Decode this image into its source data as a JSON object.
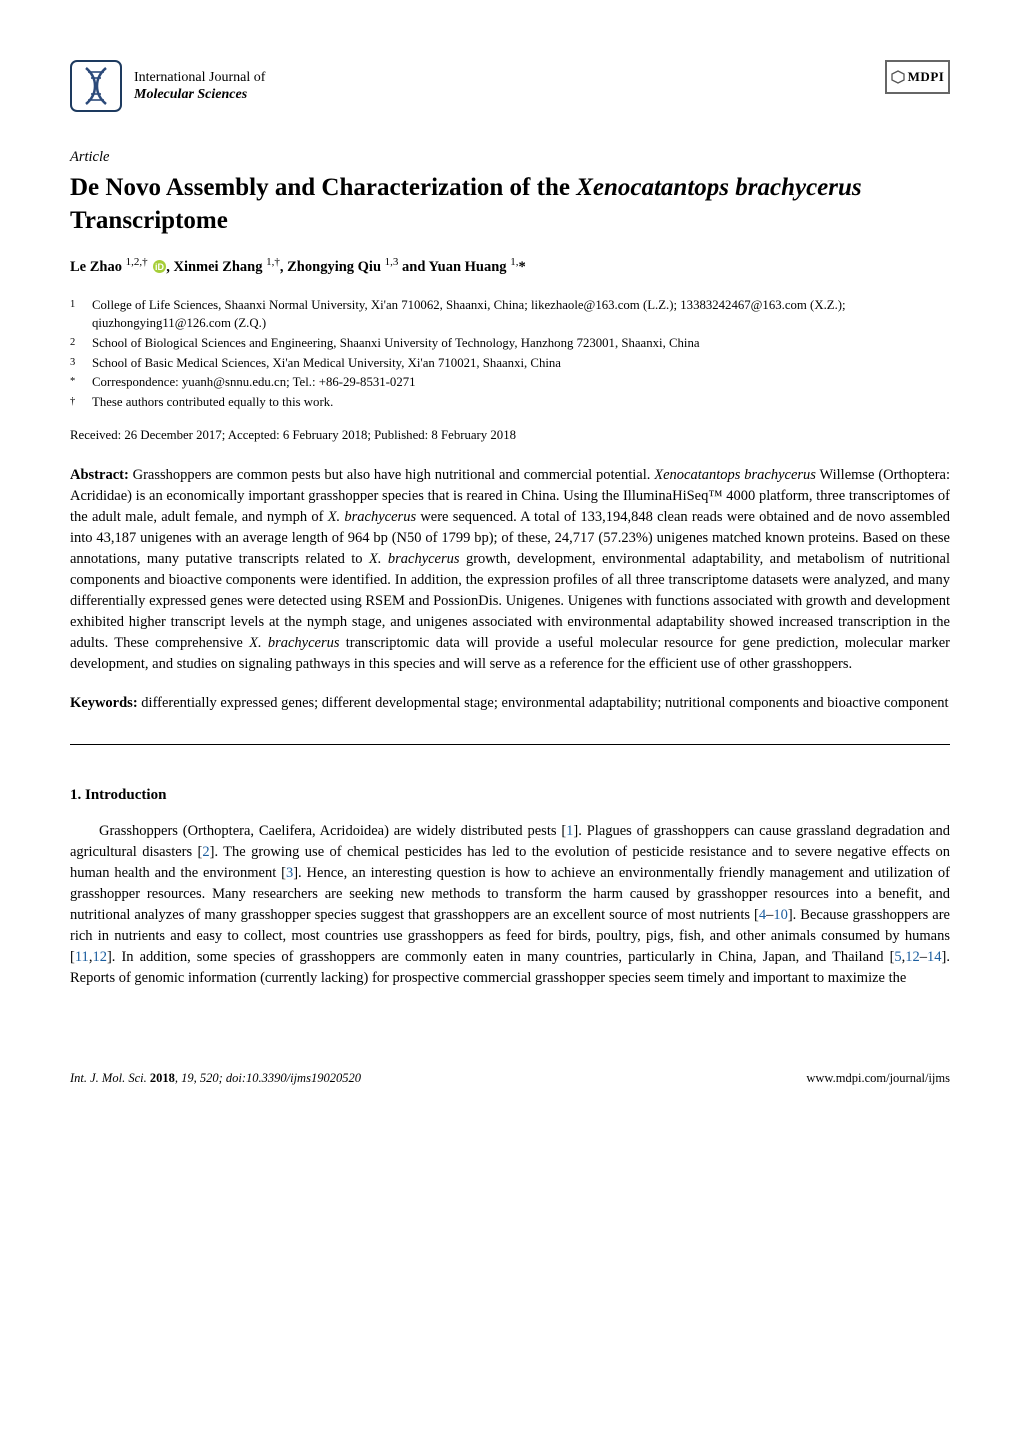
{
  "journal": {
    "line1": "International Journal of",
    "line2": "Molecular Sciences",
    "logo_colors": {
      "strands": "#2c4a7a",
      "border": "#1d3a5f"
    }
  },
  "publisher_logo": "MDPI",
  "article_type": "Article",
  "title_parts": {
    "pre": "De Novo Assembly and Characterization of the ",
    "species": "Xenocatantops brachycerus",
    "post": " Transcriptome"
  },
  "authors_html": "Le Zhao <sup>1,2,†</sup> <span class='orcid-slot'></span>, Xinmei Zhang <sup>1,†</sup>, Zhongying Qiu <sup>1,3</sup> and Yuan Huang <sup>1,</sup>*",
  "orcid_color": "#a6ce39",
  "affiliations": [
    {
      "num": "1",
      "text": "College of Life Sciences, Shaanxi Normal University, Xi'an 710062, Shaanxi, China; likezhaole@163.com (L.Z.); 13383242467@163.com (X.Z.); qiuzhongying11@126.com (Z.Q.)"
    },
    {
      "num": "2",
      "text": "School of Biological Sciences and Engineering, Shaanxi University of Technology, Hanzhong 723001, Shaanxi, China"
    },
    {
      "num": "3",
      "text": "School of Basic Medical Sciences, Xi'an Medical University, Xi'an 710021, Shaanxi, China"
    },
    {
      "num": "*",
      "text": "Correspondence: yuanh@snnu.edu.cn; Tel.: +86-29-8531-0271"
    },
    {
      "num": "†",
      "text": "These authors contributed equally to this work."
    }
  ],
  "dates": "Received: 26 December 2017; Accepted: 6 February 2018; Published: 8 February 2018",
  "abstract_label": "Abstract:",
  "abstract_text": " Grasshoppers are common pests but also have high nutritional and commercial potential. <em>Xenocatantops brachycerus</em> Willemse (Orthoptera: Acrididae) is an economically important grasshopper species that is reared in China. Using the IlluminaHiSeq™ 4000 platform, three transcriptomes of the adult male, adult female, and nymph of <em>X. brachycerus</em> were sequenced. A total of 133,194,848 clean reads were obtained and de novo assembled into 43,187 unigenes with an average length of 964 bp (N50 of 1799 bp); of these, 24,717 (57.23%) unigenes matched known proteins. Based on these annotations, many putative transcripts related to <em>X. brachycerus</em> growth, development, environmental adaptability, and metabolism of nutritional components and bioactive components were identified. In addition, the expression profiles of all three transcriptome datasets were analyzed, and many differentially expressed genes were detected using RSEM and PossionDis. Unigenes. Unigenes with functions associated with growth and development exhibited higher transcript levels at the nymph stage, and unigenes associated with environmental adaptability showed increased transcription in the adults. These comprehensive <em>X. brachycerus</em> transcriptomic data will provide a useful molecular resource for gene prediction, molecular marker development, and studies on signaling pathways in this species and will serve as a reference for the efficient use of other grasshoppers.",
  "keywords_label": "Keywords:",
  "keywords_text": " differentially expressed genes; different developmental stage; environmental adaptability; nutritional components and bioactive component",
  "section1_heading": "1. Introduction",
  "section1_para": "Grasshoppers (Orthoptera, Caelifera, Acridoidea) are widely distributed pests [<a class='ref'>1</a>]. Plagues of grasshoppers can cause grassland degradation and agricultural disasters [<a class='ref'>2</a>]. The growing use of chemical pesticides has led to the evolution of pesticide resistance and to severe negative effects on human health and the environment [<a class='ref'>3</a>]. Hence, an interesting question is how to achieve an environmentally friendly management and utilization of grasshopper resources. Many researchers are seeking new methods to transform the harm caused by grasshopper resources into a benefit, and nutritional analyzes of many grasshopper species suggest that grasshoppers are an excellent source of most nutrients [<a class='ref'>4</a>–<a class='ref'>10</a>]. Because grasshoppers are rich in nutrients and easy to collect, most countries use grasshoppers as feed for birds, poultry, pigs, fish, and other animals consumed by humans [<a class='ref'>11</a>,<a class='ref'>12</a>]. In addition, some species of grasshoppers are commonly eaten in many countries, particularly in China, Japan, and Thailand [<a class='ref'>5</a>,<a class='ref'>12</a>–<a class='ref'>14</a>]. Reports of genomic information (currently lacking) for prospective commercial grasshopper species seem timely and important to maximize the",
  "link_color": "#1a5d9e",
  "footer": {
    "left_pre": "Int. J. Mol. Sci. ",
    "left_bold": "2018",
    "left_post": ", 19, 520; doi:10.3390/ijms19020520",
    "right": "www.mdpi.com/journal/ijms"
  }
}
